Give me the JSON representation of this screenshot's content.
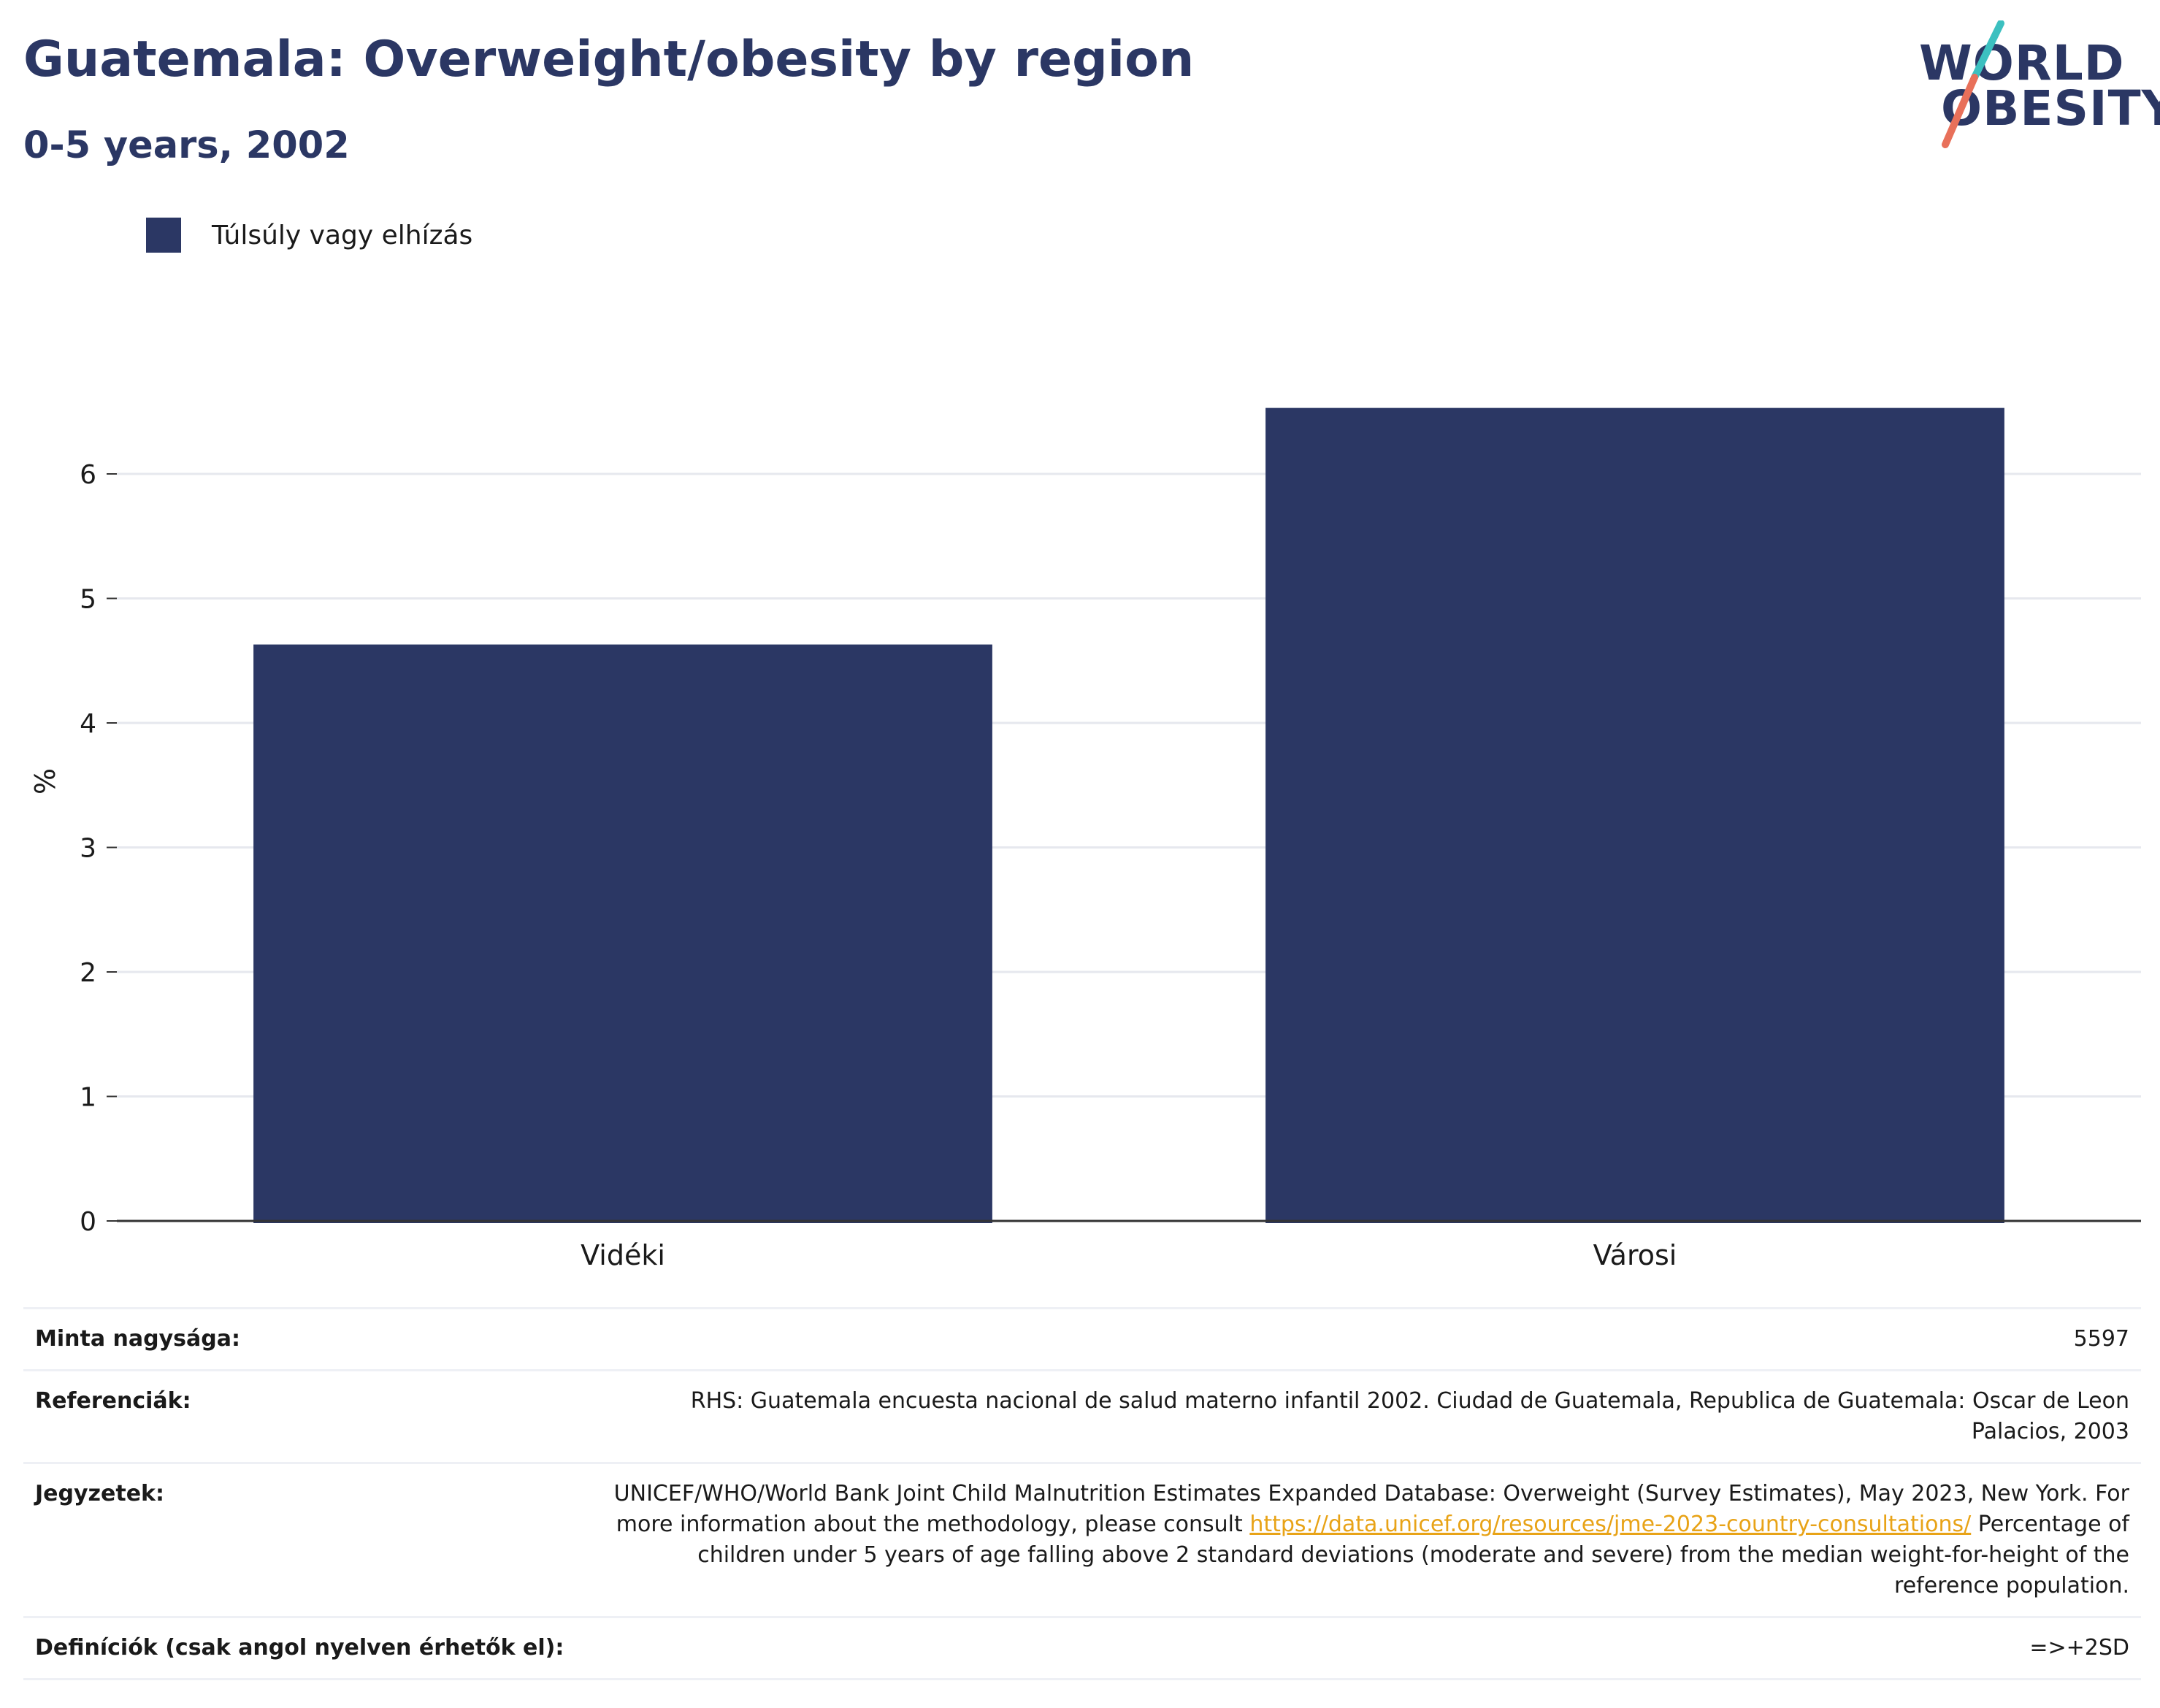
{
  "header": {
    "title": "Guatemala: Overweight/obesity by region",
    "subtitle": "0-5 years, 2002"
  },
  "logo": {
    "line1": "WORLD",
    "line2": "OBESITY"
  },
  "colors": {
    "bar": "#2b3764",
    "grid": "#e6e8ee",
    "axis": "#333333",
    "link": "#e8a317"
  },
  "chart_data": {
    "type": "bar",
    "categories": [
      "Vidéki",
      "Városi"
    ],
    "series": [
      {
        "name": "Túlsúly vagy elhízás",
        "values": [
          4.63,
          6.53
        ]
      }
    ],
    "ylabel": "%",
    "xlabel": "",
    "ylim": [
      0,
      7
    ],
    "yticks": [
      0,
      1,
      2,
      3,
      4,
      5,
      6
    ],
    "grid": true,
    "legend_position": "top-left"
  },
  "info": {
    "sample_label": "Minta nagysága:",
    "sample_value": "5597",
    "references_label": "Referenciák:",
    "references_value": "RHS: Guatemala encuesta nacional de salud materno infantil 2002. Ciudad de Guatemala, Republica de Guatemala: Oscar de Leon Palacios, 2003",
    "notes_label": "Jegyzetek:",
    "notes_before_link": "UNICEF/WHO/World Bank Joint Child Malnutrition Estimates Expanded Database: Overweight (Survey Estimates), May 2023, New York. For more information about the methodology, please consult ",
    "notes_link": "https://data.unicef.org/resources/jme-2023-country-consultations/",
    "notes_after_link": " Percentage of children under 5 years of age falling above 2 standard deviations (moderate and severe) from the median weight-for-height of the reference population.",
    "definitions_label": "Definíciók (csak angol nyelven érhetők el):",
    "definitions_value": "=>+2SD"
  }
}
